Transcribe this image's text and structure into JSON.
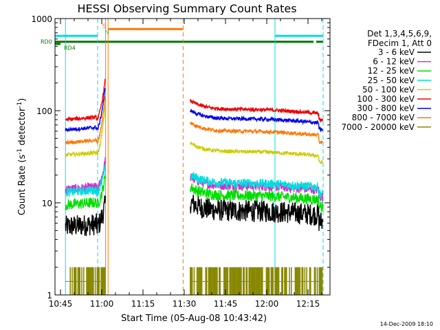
{
  "chart_data": {
    "type": "line",
    "title": "HESSI Observing Summary Count Rates",
    "xlabel": "Start Time (05-Aug-08 10:43:42)",
    "ylabel_main": "Count Rate (s",
    "ylabel_sup1": "-1",
    "ylabel_mid": " detector",
    "ylabel_sup2": "-1",
    "ylabel_end": ")",
    "y_scale": "log",
    "ylim": [
      1,
      1000
    ],
    "xlim_minutes": [
      -2,
      98
    ],
    "x_ticks": [
      {
        "label": "10:45",
        "minute": 0
      },
      {
        "label": "11:00",
        "minute": 15
      },
      {
        "label": "11:15",
        "minute": 30
      },
      {
        "label": "11:30",
        "minute": 45
      },
      {
        "label": "11:45",
        "minute": 60
      },
      {
        "label": "12:00",
        "minute": 75
      },
      {
        "label": "12:15",
        "minute": 90
      }
    ],
    "y_ticks": [
      {
        "label": "1",
        "value": 1
      },
      {
        "label": "10",
        "value": 10
      },
      {
        "label": "100",
        "value": 100
      },
      {
        "label": "1000",
        "value": 1000
      }
    ],
    "legend_header": [
      "Det 1,3,4,5,6,9,",
      "FDecim 1, Att 0"
    ],
    "legend_placement": "right",
    "series": [
      {
        "name": "3 - 6 keV",
        "color": "#000000",
        "base": 5.5,
        "level": 7.5,
        "segments": [
          [
            1.8,
            16.4
          ],
          [
            47.2,
            95.4
          ]
        ],
        "noise": 0.12,
        "peak": 10
      },
      {
        "name": "6 - 12 keV",
        "color": "#cc33cc",
        "base": 14,
        "level": 14,
        "segments": [
          [
            1.8,
            16.4
          ],
          [
            47.2,
            95.4
          ]
        ],
        "noise": 0.05,
        "peak": 30
      },
      {
        "name": "12 - 25 keV",
        "color": "#00dd00",
        "base": 9.5,
        "level": 11,
        "segments": [
          [
            1.8,
            16.4
          ],
          [
            47.2,
            95.4
          ]
        ],
        "noise": 0.06,
        "peak": 20
      },
      {
        "name": "25 - 50 keV",
        "color": "#00dddd",
        "base": 13,
        "level": 15,
        "segments": [
          [
            1.8,
            16.4
          ],
          [
            47.2,
            95.4
          ]
        ],
        "noise": 0.05,
        "peak": 25
      },
      {
        "name": "50 - 100 keV",
        "color": "#cccc00",
        "base": 33,
        "level": 33,
        "segments": [
          [
            1.8,
            16.4
          ],
          [
            47.2,
            95.4
          ]
        ],
        "noise": 0.02,
        "peak": 120
      },
      {
        "name": "100 - 300 keV",
        "color": "#ee0000",
        "base": 80,
        "level": 95,
        "segments": [
          [
            1.8,
            16.4
          ],
          [
            47.2,
            95.4
          ]
        ],
        "noise": 0.02,
        "peak": 230
      },
      {
        "name": "300 - 800 keV",
        "color": "#0000ee",
        "base": 62,
        "level": 75,
        "segments": [
          [
            1.8,
            16.4
          ],
          [
            47.2,
            95.4
          ]
        ],
        "noise": 0.02,
        "peak": 190
      },
      {
        "name": "800 - 7000 keV",
        "color": "#ff7700",
        "base": 45,
        "level": 55,
        "segments": [
          [
            1.8,
            16.4
          ],
          [
            47.2,
            95.4
          ]
        ],
        "noise": 0.02,
        "peak": 150
      },
      {
        "name": "7000 - 20000 keV",
        "color": "#888800",
        "base": 1.4,
        "level": 1.4,
        "segments": [
          [
            1.8,
            16.4
          ],
          [
            47.2,
            95.4
          ]
        ],
        "noise": 0.2,
        "peak": 3
      }
    ],
    "vertical_lines": [
      {
        "minute": 1.8,
        "color": "#00dddd",
        "style": "solid"
      },
      {
        "minute": 13.5,
        "color": "#00dddd",
        "style": "dashed"
      },
      {
        "minute": 16.4,
        "color": "#ff7700",
        "style": "solid"
      },
      {
        "minute": 17.3,
        "color": "#ff7700",
        "style": "solid"
      },
      {
        "minute": 44.6,
        "color": "#ff7700",
        "style": "dashed"
      },
      {
        "minute": 78,
        "color": "#00dddd",
        "style": "solid"
      },
      {
        "minute": 95.5,
        "color": "#00dddd",
        "style": "dashed"
      }
    ],
    "flag_bars": [
      {
        "color": "#00dddd",
        "y_value": 650,
        "ranges": [
          [
            -2,
            13.5
          ],
          [
            78,
            95.5
          ]
        ]
      },
      {
        "color": "#ff7700",
        "y_value": 770,
        "ranges": [
          [
            17.3,
            44.6
          ]
        ]
      },
      {
        "color": "#007700",
        "y_value": 560,
        "ranges": [
          [
            -2,
            92
          ],
          [
            93,
            95.5
          ]
        ]
      }
    ],
    "flag_labels": [
      {
        "text": "S",
        "color": "#ff7700",
        "minute": 15.2,
        "y_value": 840
      },
      {
        "text": "N",
        "color": "#00dddd",
        "minute": 16.1,
        "y_value": 720
      },
      {
        "text": "RD0",
        "color": "#007700",
        "label": true
      },
      {
        "text": "RD4",
        "color": "#007700",
        "label": true
      }
    ]
  },
  "footer_date": "14-Dec-2009 18:10"
}
